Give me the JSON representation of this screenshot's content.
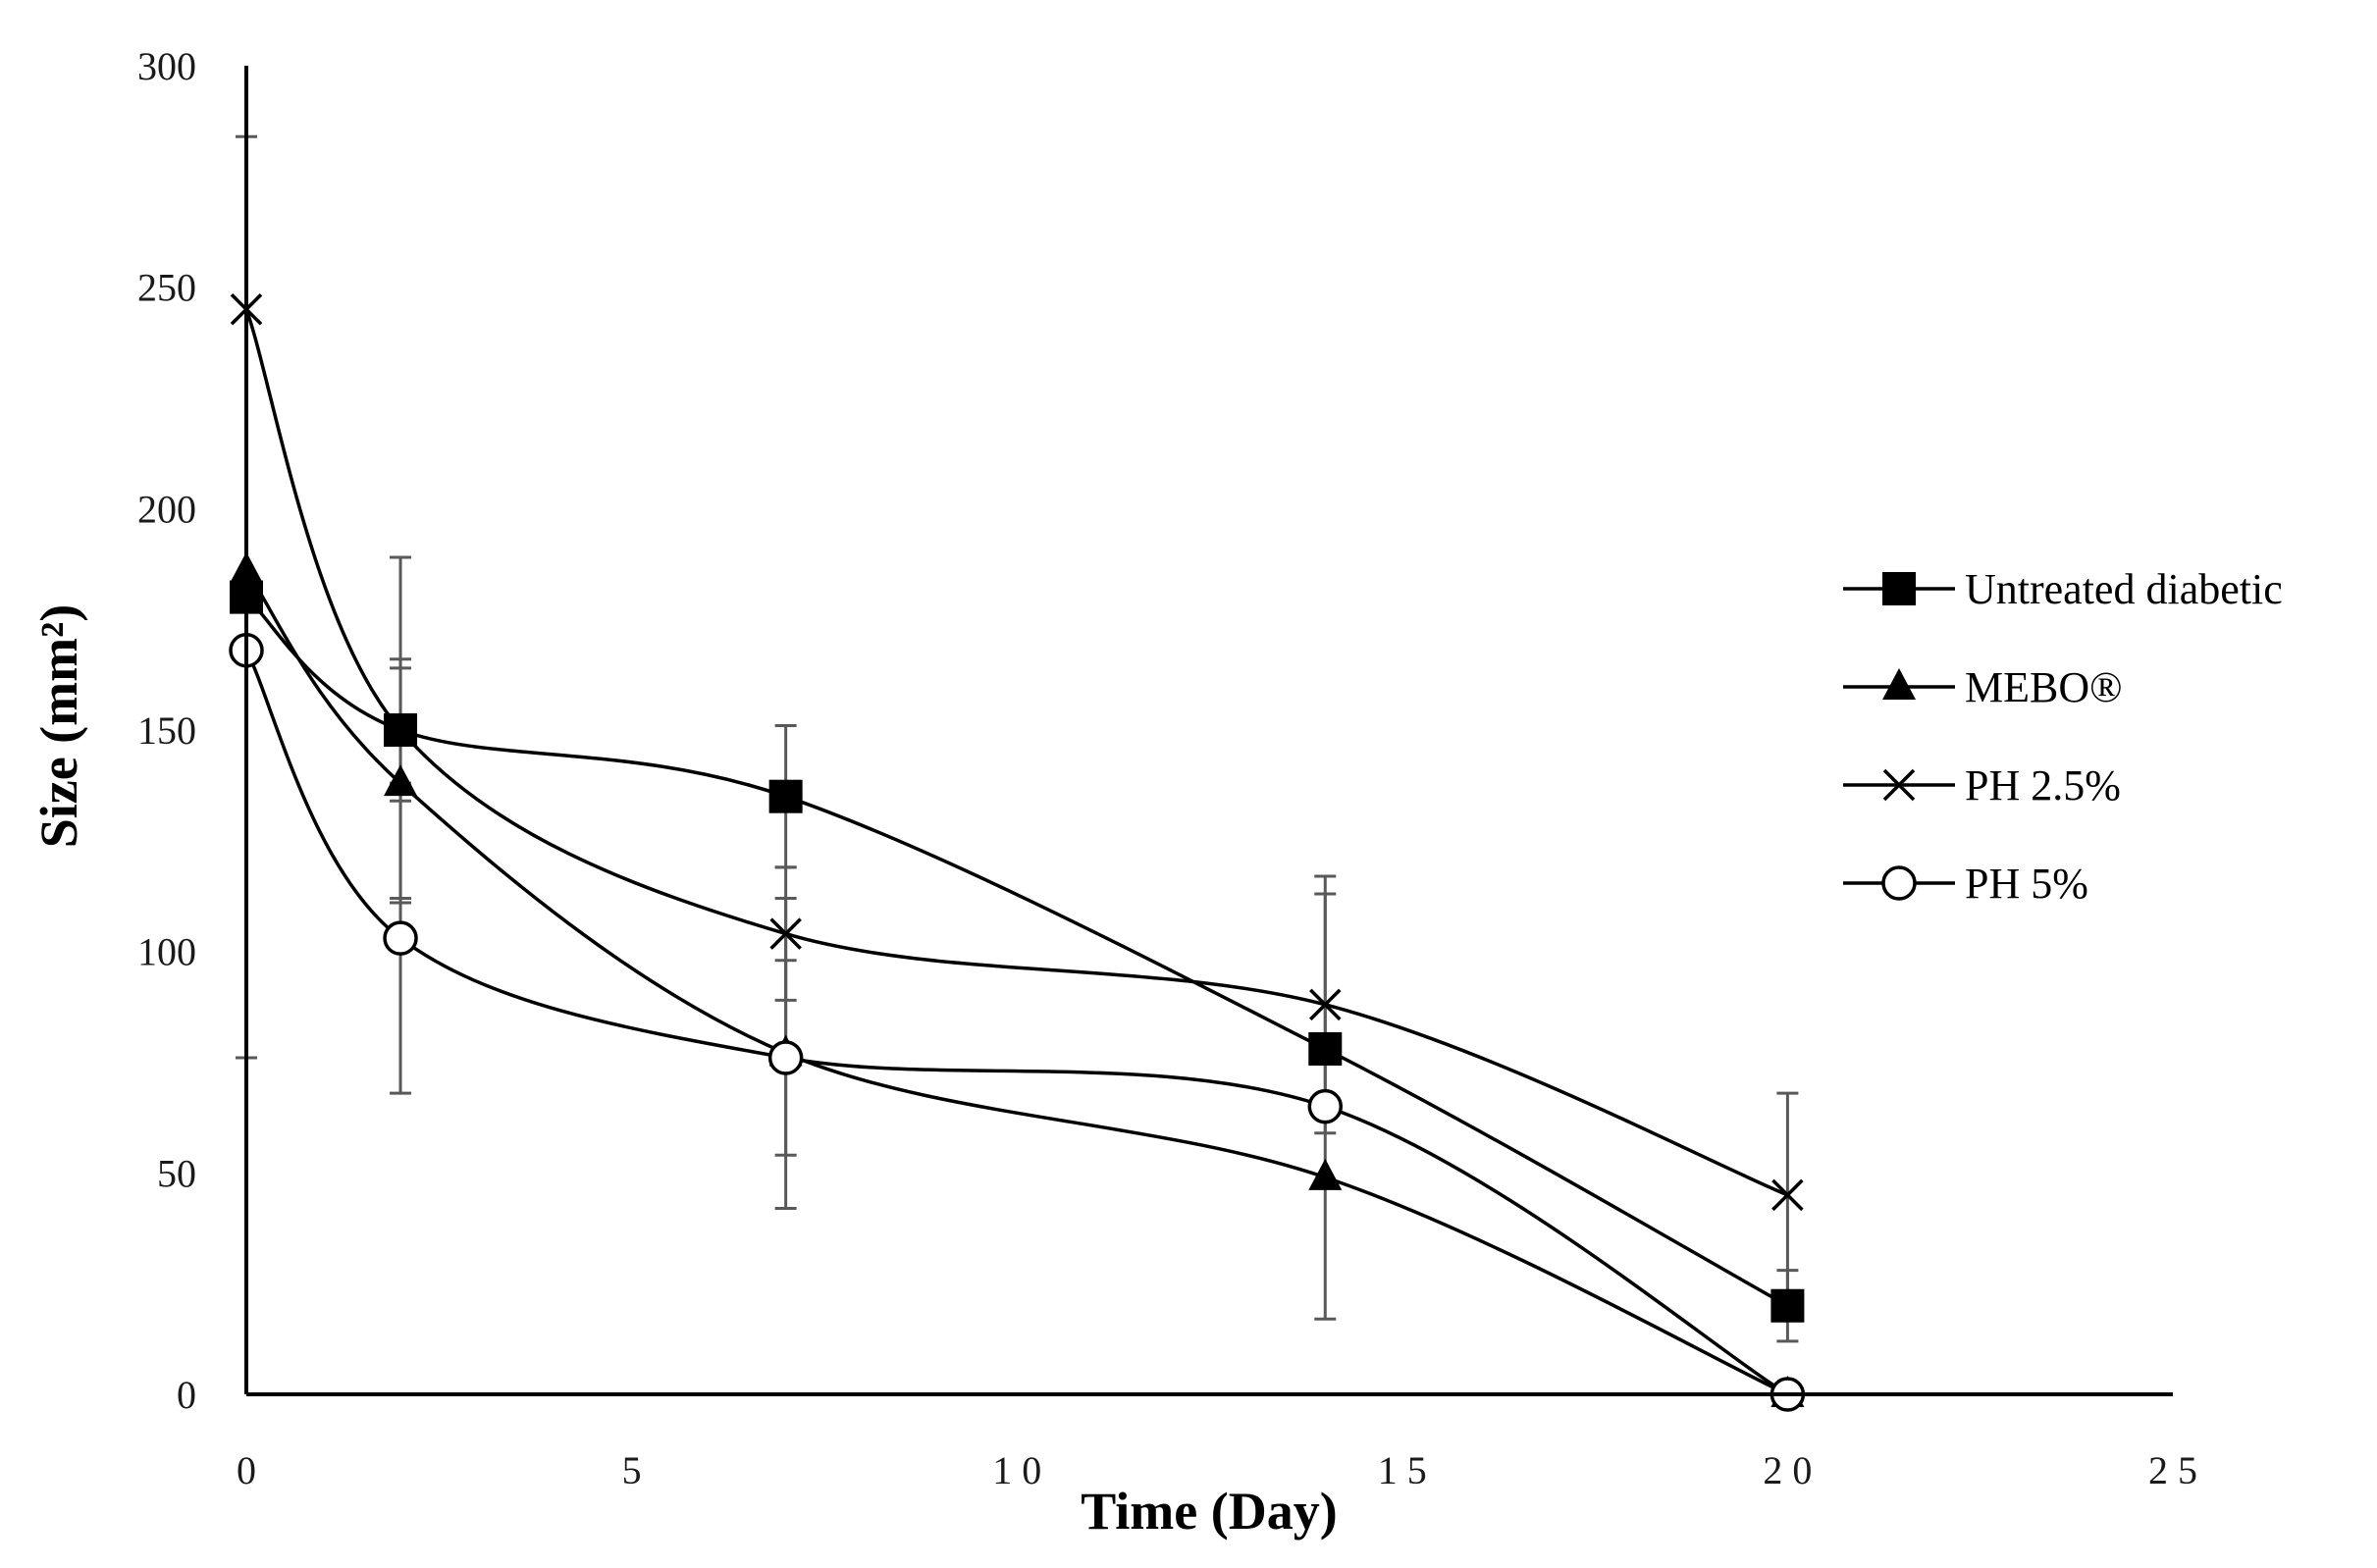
{
  "chart_data": {
    "type": "line",
    "title": "",
    "xlabel": "Time (Day)",
    "ylabel": "Size (mm²)",
    "xlim": [
      0,
      25
    ],
    "ylim": [
      0,
      300
    ],
    "xticks": [
      0,
      5,
      10,
      15,
      20,
      25
    ],
    "yticks": [
      0,
      50,
      100,
      150,
      200,
      250,
      300
    ],
    "xtick_labels": [
      "0",
      "5",
      "10",
      "15",
      "20",
      "25"
    ],
    "ytick_labels": [
      "0",
      "50",
      "100",
      "150",
      "200",
      "250",
      "300"
    ],
    "grid": false,
    "smooth": true,
    "legend_position": "right",
    "x": [
      0,
      2,
      7,
      14,
      20
    ],
    "series": [
      {
        "name": "Untreated diabetic",
        "marker": "square",
        "values": [
          180,
          150,
          135,
          78,
          20
        ],
        "errors": [
          104,
          39,
          16,
          0,
          8
        ]
      },
      {
        "name": "MEBO®",
        "marker": "triangle",
        "values": [
          186,
          138,
          77,
          49,
          0
        ],
        "errors": [
          0,
          26,
          35,
          0,
          0
        ]
      },
      {
        "name": "PH 2.5%",
        "marker": "x",
        "values": [
          245,
          150,
          104,
          88,
          45
        ],
        "errors": [
          0,
          16,
          15,
          29,
          23
        ]
      },
      {
        "name": "PH 5%",
        "marker": "circle",
        "values": [
          168,
          103,
          76,
          65,
          0
        ],
        "errors": [
          0,
          35,
          22,
          48,
          0
        ]
      }
    ]
  },
  "colors": {
    "line": "#000000",
    "errorbar": "#595959",
    "axis": "#000000"
  }
}
